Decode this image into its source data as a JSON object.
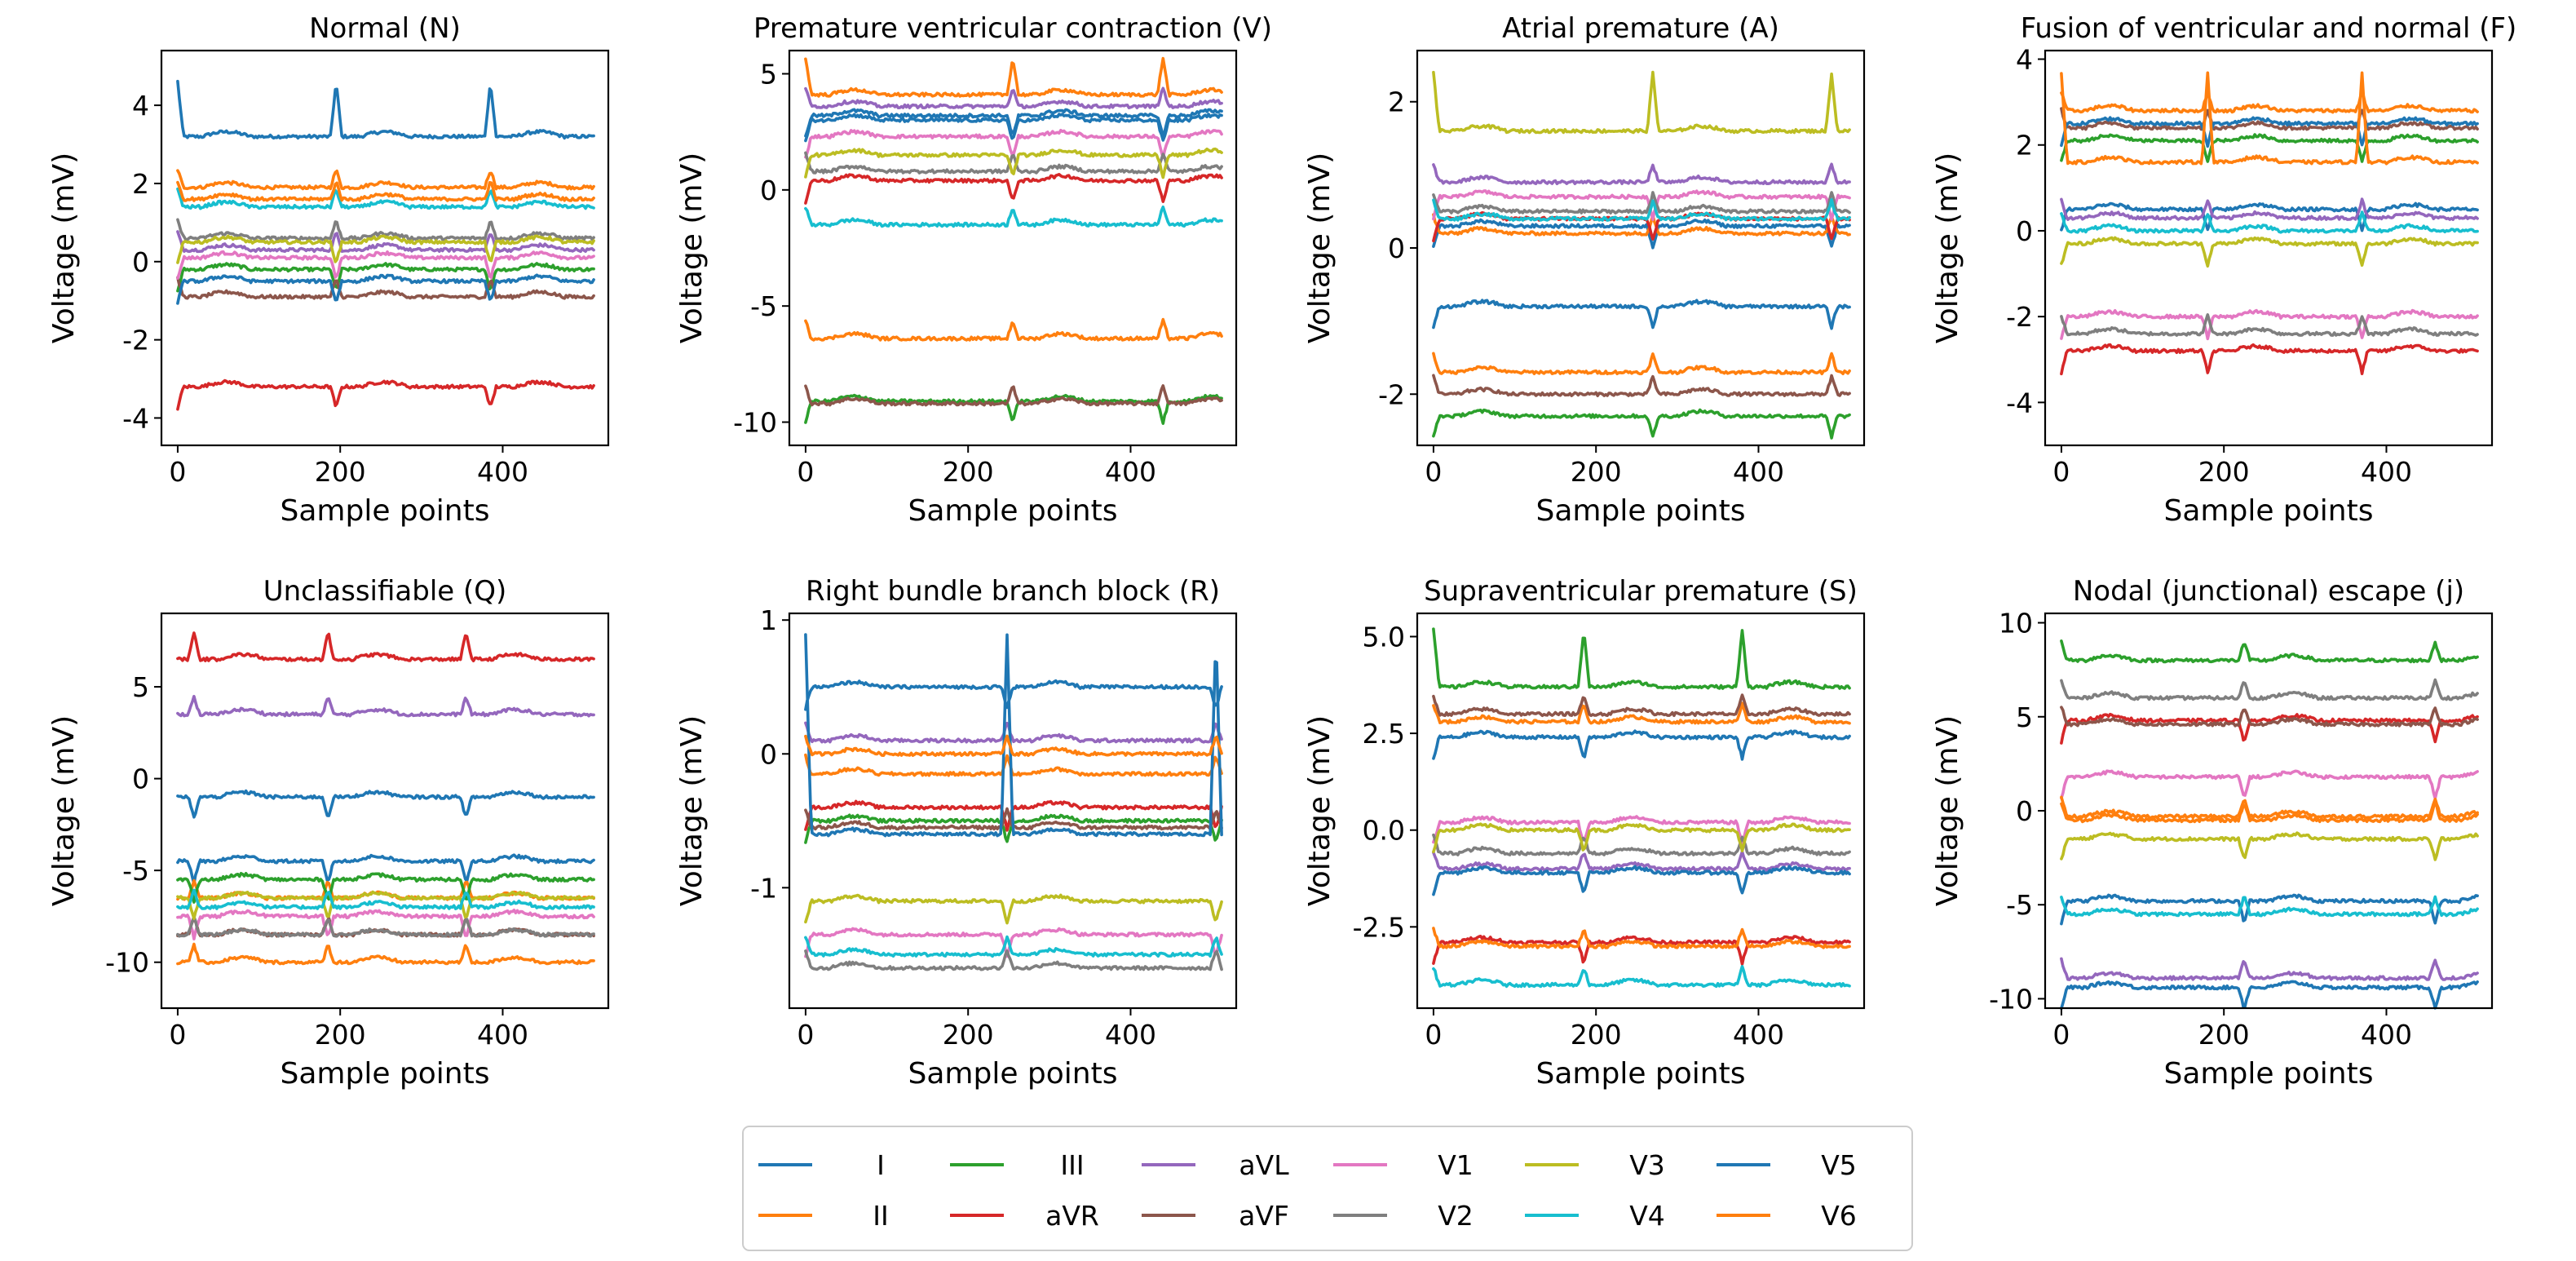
{
  "chart_data": [
    {
      "type": "line",
      "title": "Normal (N)",
      "xlabel": "Sample points",
      "ylabel": "Voltage (mV)",
      "xlim": [
        -20,
        530
      ],
      "ylim": [
        -4.7,
        5.4
      ],
      "xticks": [
        0,
        200,
        400
      ],
      "yticks": [
        -4,
        -2,
        0,
        2,
        4
      ],
      "beats": [
        0,
        195,
        385
      ],
      "tall_lead": "I",
      "tall_peak": 4.6,
      "series": [
        {
          "name": "I",
          "base": 3.2
        },
        {
          "name": "II",
          "base": 1.9
        },
        {
          "name": "III",
          "base": -0.2
        },
        {
          "name": "aVL",
          "base": 0.3
        },
        {
          "name": "aVR",
          "base": -3.2
        },
        {
          "name": "aVF",
          "base": -0.9
        },
        {
          "name": "V1",
          "base": 0.1
        },
        {
          "name": "V2",
          "base": 0.6
        },
        {
          "name": "V3",
          "base": 0.5
        },
        {
          "name": "V4",
          "base": 1.4
        },
        {
          "name": "V5",
          "base": -0.5
        },
        {
          "name": "V6",
          "base": 1.6
        }
      ]
    },
    {
      "type": "line",
      "title": "Premature ventricular contraction (V)",
      "xlabel": "Sample points",
      "ylabel": "Voltage (mV)",
      "xlim": [
        -20,
        530
      ],
      "ylim": [
        -11,
        6
      ],
      "xticks": [
        0,
        200,
        400
      ],
      "yticks": [
        -10,
        -5,
        0,
        5
      ],
      "beats": [
        0,
        255,
        440
      ],
      "tall_lead": "II",
      "tall_peak": 5.7,
      "series": [
        {
          "name": "I",
          "base": 3.2
        },
        {
          "name": "II",
          "base": 4.1
        },
        {
          "name": "III",
          "base": -9.1
        },
        {
          "name": "aVL",
          "base": 3.6
        },
        {
          "name": "aVR",
          "base": 0.4
        },
        {
          "name": "aVF",
          "base": -9.2
        },
        {
          "name": "V1",
          "base": 2.3
        },
        {
          "name": "V2",
          "base": 0.8
        },
        {
          "name": "V3",
          "base": 1.5
        },
        {
          "name": "V4",
          "base": -1.5
        },
        {
          "name": "V5",
          "base": 3.0
        },
        {
          "name": "V6",
          "base": -6.4
        }
      ]
    },
    {
      "type": "line",
      "title": "Atrial premature (A)",
      "xlabel": "Sample points",
      "ylabel": "Voltage (mV)",
      "xlim": [
        -20,
        530
      ],
      "ylim": [
        -2.7,
        2.7
      ],
      "xticks": [
        0,
        200,
        400
      ],
      "yticks": [
        -2,
        0,
        2
      ],
      "beats": [
        0,
        270,
        490
      ],
      "tall_lead": "V3",
      "tall_peak": 2.4,
      "series": [
        {
          "name": "I",
          "base": 0.3
        },
        {
          "name": "II",
          "base": 0.2
        },
        {
          "name": "III",
          "base": -2.3
        },
        {
          "name": "aVL",
          "base": 0.9
        },
        {
          "name": "aVR",
          "base": 0.4
        },
        {
          "name": "aVF",
          "base": -2.0
        },
        {
          "name": "V1",
          "base": 0.7
        },
        {
          "name": "V2",
          "base": 0.5
        },
        {
          "name": "V3",
          "base": 1.6
        },
        {
          "name": "V4",
          "base": 0.4
        },
        {
          "name": "V5",
          "base": -0.8
        },
        {
          "name": "V6",
          "base": -1.7
        }
      ]
    },
    {
      "type": "line",
      "title": "Fusion of ventricular and normal (F)",
      "xlabel": "Sample points",
      "ylabel": "Voltage (mV)",
      "xlim": [
        -20,
        530
      ],
      "ylim": [
        -5,
        4.2
      ],
      "xticks": [
        0,
        200,
        400
      ],
      "yticks": [
        -4,
        -2,
        0,
        2,
        4
      ],
      "beats": [
        0,
        180,
        370
      ],
      "tall_lead": "V6",
      "tall_peak": 3.7,
      "series": [
        {
          "name": "I",
          "base": 0.5
        },
        {
          "name": "II",
          "base": 2.8
        },
        {
          "name": "III",
          "base": 2.1
        },
        {
          "name": "aVL",
          "base": 0.3
        },
        {
          "name": "aVR",
          "base": -2.8
        },
        {
          "name": "aVF",
          "base": 2.4
        },
        {
          "name": "V1",
          "base": -2.0
        },
        {
          "name": "V2",
          "base": -2.4
        },
        {
          "name": "V3",
          "base": -0.3
        },
        {
          "name": "V4",
          "base": 0.0
        },
        {
          "name": "V5",
          "base": 2.5
        },
        {
          "name": "V6",
          "base": 1.6
        }
      ]
    },
    {
      "type": "line",
      "title": "Unclassifiable (Q)",
      "xlabel": "Sample points",
      "ylabel": "Voltage (mV)",
      "xlim": [
        -20,
        530
      ],
      "ylim": [
        -12.5,
        9
      ],
      "xticks": [
        0,
        200,
        400
      ],
      "yticks": [
        -10,
        -5,
        0,
        5
      ],
      "beats": [
        20,
        185,
        355
      ],
      "tall_lead": "aVR",
      "tall_peak": 8.0,
      "series": [
        {
          "name": "I",
          "base": -4.5
        },
        {
          "name": "II",
          "base": -6.5
        },
        {
          "name": "III",
          "base": -5.5
        },
        {
          "name": "aVL",
          "base": 3.5
        },
        {
          "name": "aVR",
          "base": 6.5
        },
        {
          "name": "aVF",
          "base": -8.5
        },
        {
          "name": "V1",
          "base": -7.5
        },
        {
          "name": "V2",
          "base": -8.5
        },
        {
          "name": "V3",
          "base": -6.5
        },
        {
          "name": "V4",
          "base": -7.0
        },
        {
          "name": "V5",
          "base": -1.0
        },
        {
          "name": "V6",
          "base": -10.0
        }
      ]
    },
    {
      "type": "line",
      "title": "Right bundle branch block (R)",
      "xlabel": "Sample points",
      "ylabel": "Voltage (mV)",
      "xlim": [
        -20,
        530
      ],
      "ylim": [
        -1.9,
        1.05
      ],
      "xticks": [
        0,
        200,
        400
      ],
      "yticks": [
        -1,
        0,
        1
      ],
      "beats": [
        0,
        248,
        505
      ],
      "tall_lead": "V5",
      "tall_peak": 0.9,
      "series": [
        {
          "name": "I",
          "base": 0.5
        },
        {
          "name": "II",
          "base": -0.15
        },
        {
          "name": "III",
          "base": -0.5
        },
        {
          "name": "aVL",
          "base": 0.1
        },
        {
          "name": "aVR",
          "base": -0.4
        },
        {
          "name": "aVF",
          "base": -0.55
        },
        {
          "name": "V1",
          "base": -1.35
        },
        {
          "name": "V2",
          "base": -1.6
        },
        {
          "name": "V3",
          "base": -1.1
        },
        {
          "name": "V4",
          "base": -1.5
        },
        {
          "name": "V5",
          "base": -0.6
        },
        {
          "name": "V6",
          "base": 0.0
        }
      ]
    },
    {
      "type": "line",
      "title": "Supraventricular premature (S)",
      "xlabel": "Sample points",
      "ylabel": "Voltage (mV)",
      "xlim": [
        -20,
        530
      ],
      "ylim": [
        -4.6,
        5.6
      ],
      "xticks": [
        0,
        200,
        400
      ],
      "yticks": [
        -2.5,
        0.0,
        2.5,
        5.0
      ],
      "beats": [
        0,
        185,
        380
      ],
      "tall_lead": "III",
      "tall_peak": 5.2,
      "series": [
        {
          "name": "I",
          "base": 2.4
        },
        {
          "name": "II",
          "base": 2.8
        },
        {
          "name": "III",
          "base": 3.7
        },
        {
          "name": "aVL",
          "base": -1.0
        },
        {
          "name": "aVR",
          "base": -2.9
        },
        {
          "name": "aVF",
          "base": 3.0
        },
        {
          "name": "V1",
          "base": 0.2
        },
        {
          "name": "V2",
          "base": -0.6
        },
        {
          "name": "V3",
          "base": 0.0
        },
        {
          "name": "V4",
          "base": -4.0
        },
        {
          "name": "V5",
          "base": -1.1
        },
        {
          "name": "V6",
          "base": -3.0
        }
      ]
    },
    {
      "type": "line",
      "title": "Nodal (junctional) escape (j)",
      "xlabel": "Sample points",
      "ylabel": "Voltage (mV)",
      "xlim": [
        -20,
        530
      ],
      "ylim": [
        -10.5,
        10.5
      ],
      "xticks": [
        0,
        200,
        400
      ],
      "yticks": [
        -10,
        -5,
        0,
        5,
        10
      ],
      "beats": [
        0,
        225,
        460
      ],
      "tall_lead": "III",
      "tall_peak": 9.0,
      "series": [
        {
          "name": "I",
          "base": -4.8
        },
        {
          "name": "II",
          "base": -0.5
        },
        {
          "name": "III",
          "base": 8.0
        },
        {
          "name": "aVL",
          "base": -8.9
        },
        {
          "name": "aVR",
          "base": 4.8
        },
        {
          "name": "aVF",
          "base": 4.6
        },
        {
          "name": "V1",
          "base": 1.8
        },
        {
          "name": "V2",
          "base": 6.0
        },
        {
          "name": "V3",
          "base": -1.5
        },
        {
          "name": "V4",
          "base": -5.5
        },
        {
          "name": "V5",
          "base": -9.4
        },
        {
          "name": "V6",
          "base": -0.3
        }
      ]
    }
  ],
  "legend": {
    "placement": "bottom-center",
    "entries": [
      {
        "name": "I",
        "color": "#1f77b4"
      },
      {
        "name": "II",
        "color": "#ff7f0e"
      },
      {
        "name": "III",
        "color": "#2ca02c"
      },
      {
        "name": "aVR",
        "color": "#d62728"
      },
      {
        "name": "aVL",
        "color": "#9467bd"
      },
      {
        "name": "aVF",
        "color": "#8c564b"
      },
      {
        "name": "V1",
        "color": "#e377c2"
      },
      {
        "name": "V2",
        "color": "#7f7f7f"
      },
      {
        "name": "V3",
        "color": "#bcbd22"
      },
      {
        "name": "V4",
        "color": "#17becf"
      },
      {
        "name": "V5",
        "color": "#1f77b4"
      },
      {
        "name": "V6",
        "color": "#ff7f0e"
      }
    ]
  }
}
